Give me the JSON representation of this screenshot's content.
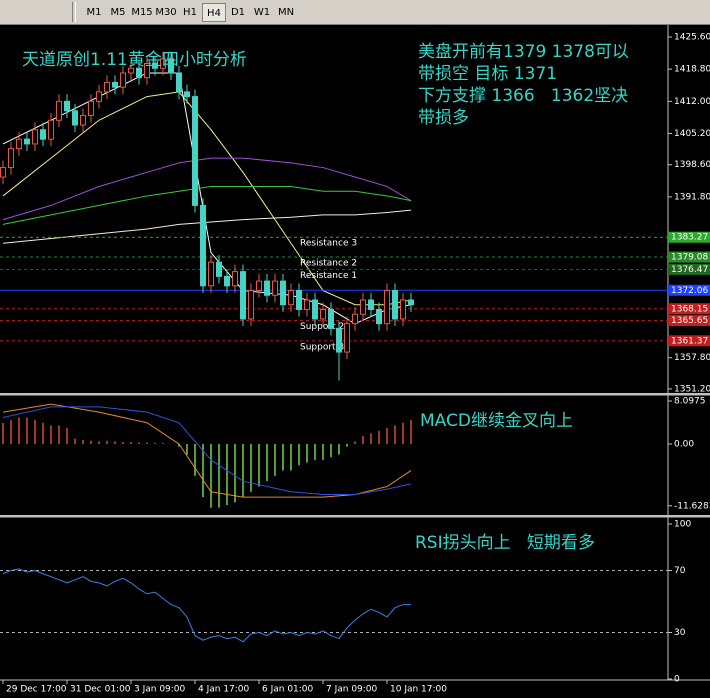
{
  "toolbar": {
    "timeframes": [
      "M1",
      "M5",
      "M15",
      "M30",
      "H1",
      "H4",
      "D1",
      "W1",
      "MN"
    ],
    "active": "H4"
  },
  "chart_data": [
    {
      "type": "candlestick",
      "title": "天道原创1.11黄金四小时分析",
      "notes": [
        "美盘开前有1379 1378可以",
        "带损空 目标 1371",
        "下方支撑 1366   1362坚决",
        "带损多"
      ],
      "categories": [
        "29 Dec 17:00",
        null,
        null,
        null,
        null,
        null,
        null,
        null,
        "31 Dec 01:00",
        null,
        null,
        null,
        null,
        null,
        null,
        null,
        "3 Jan 09:00",
        null,
        null,
        null,
        null,
        null,
        null,
        null,
        "4 Jan 17:00",
        null,
        null,
        null,
        null,
        null,
        null,
        null,
        "6 Jan 01:00",
        null,
        null,
        null,
        null,
        null,
        null,
        null,
        "7 Jan 09:00",
        null,
        null,
        null,
        null,
        null,
        null,
        null,
        "10 Jan 17:00",
        null,
        null,
        null
      ],
      "open": [
        1396,
        1398,
        1402,
        1404,
        1403,
        1406,
        1404,
        1408,
        1412,
        1410,
        1407,
        1409,
        1412,
        1414,
        1416,
        1415,
        1418,
        1419,
        1417,
        1420,
        1419,
        1421,
        1418,
        1414,
        1413,
        1390,
        1373,
        1378,
        1375,
        1373,
        1376,
        1366,
        1372,
        1374,
        1371,
        1374,
        1369,
        1372,
        1368,
        1370,
        1366,
        1368,
        1364,
        1359,
        1365,
        1367,
        1370,
        1368,
        1365,
        1372,
        1366,
        1370
      ],
      "high": [
        1399.5,
        1403.5,
        1405.5,
        1405.5,
        1407.5,
        1407.5,
        1409.5,
        1413.5,
        1413.5,
        1411.5,
        1410.5,
        1413.5,
        1415.5,
        1417.5,
        1417.5,
        1419.5,
        1420.5,
        1420.5,
        1421.5,
        1421.5,
        1422.5,
        1422.5,
        1419.5,
        1415.5,
        1414.5,
        1391.5,
        1379.5,
        1379.5,
        1376.5,
        1377.5,
        1377.5,
        1373.5,
        1375.5,
        1375.5,
        1375.5,
        1375.5,
        1373.5,
        1373.5,
        1371.5,
        1371.5,
        1369.5,
        1369.5,
        1365.5,
        1366.5,
        1368.5,
        1371.5,
        1371.5,
        1369.5,
        1373.5,
        1373.5,
        1371.5,
        1371.5
      ],
      "low": [
        1394.5,
        1396.5,
        1400.5,
        1401.5,
        1401.5,
        1402.5,
        1402.5,
        1406.5,
        1408.5,
        1405.5,
        1405.5,
        1407.5,
        1410.5,
        1412.5,
        1413.5,
        1413.5,
        1416.5,
        1415.5,
        1415.5,
        1417.5,
        1417.5,
        1416.5,
        1412.5,
        1411.5,
        1388.5,
        1371.5,
        1371.5,
        1373.5,
        1371.5,
        1371.5,
        1364.5,
        1364.5,
        1370.5,
        1369.5,
        1369.5,
        1367.5,
        1367.5,
        1366.5,
        1366.5,
        1364.5,
        1364.5,
        1362.5,
        1353,
        1357.5,
        1363.5,
        1365.5,
        1366.5,
        1363.5,
        1363.5,
        1364.5,
        1364.5,
        1367.5
      ],
      "close": [
        1398,
        1402,
        1404,
        1403,
        1406,
        1404,
        1408,
        1412,
        1410,
        1407,
        1409,
        1412,
        1414,
        1416,
        1415,
        1418,
        1419,
        1417,
        1420,
        1419,
        1421,
        1418,
        1414,
        1413,
        1390,
        1373,
        1378,
        1375,
        1373,
        1376,
        1366,
        1372,
        1374,
        1371,
        1374,
        1369,
        1372,
        1368,
        1370,
        1366,
        1368,
        1364,
        1359,
        1365,
        1367,
        1370,
        1368,
        1365,
        1372,
        1366,
        1370,
        1369
      ],
      "up_color": "#e05a4a",
      "down_color": "#45d4c4",
      "series": [
        {
          "color": "#f0f080",
          "x": [
            0,
            6,
            12,
            18,
            22,
            26,
            30,
            36,
            40,
            44,
            48,
            51
          ],
          "values": [
            1392,
            1400,
            1408,
            1413,
            1414,
            1406,
            1397,
            1382,
            1372,
            1369,
            1369,
            1370
          ]
        },
        {
          "color": "#ffffff",
          "x": [
            0,
            6,
            12,
            18,
            22,
            26,
            30,
            36,
            40,
            44,
            48,
            51
          ],
          "values": [
            1403,
            1408,
            1413,
            1418,
            1418,
            1380,
            1372,
            1371,
            1369,
            1365,
            1368,
            1369
          ]
        },
        {
          "color": "#9b4fd8",
          "x": [
            0,
            6,
            12,
            18,
            22,
            26,
            30,
            36,
            40,
            44,
            48,
            51
          ],
          "values": [
            1387,
            1390,
            1394,
            1397,
            1399,
            1400,
            1400,
            1399,
            1398,
            1396,
            1394,
            1391
          ]
        },
        {
          "color": "#3cc83c",
          "x": [
            0,
            6,
            12,
            18,
            22,
            26,
            30,
            36,
            40,
            44,
            48,
            51
          ],
          "values": [
            1386,
            1388,
            1390,
            1392,
            1393,
            1394,
            1394,
            1394,
            1393,
            1393,
            1392,
            1391
          ]
        },
        {
          "color": "#f2efd8",
          "x": [
            0,
            6,
            12,
            18,
            22,
            26,
            30,
            36,
            40,
            44,
            48,
            51
          ],
          "values": [
            1382,
            1383,
            1384,
            1385,
            1386,
            1386.5,
            1387,
            1387.5,
            1388,
            1388,
            1388.5,
            1389
          ]
        }
      ],
      "levels": [
        {
          "name": "Resistance 3",
          "value": 1383.27,
          "color": "#2fa82f"
        },
        {
          "name": "Resistance 2",
          "value": 1379.08,
          "color": "#2a8a2a"
        },
        {
          "name": "Resistance 1",
          "value": 1376.47,
          "color": "#1f6a1f"
        },
        {
          "value": 1372.06,
          "color": "#2040ff"
        },
        {
          "value": 1368.15,
          "color": "#c02020"
        },
        {
          "name": "Support 2",
          "value": 1365.65,
          "color": "#c02020"
        },
        {
          "name": "Support 3",
          "value": 1361.37,
          "color": "#c02020"
        }
      ],
      "ylim": [
        1350.34,
        1428.14
      ],
      "yticks": [
        {
          "value": 1425.6,
          "label": "1425.60"
        },
        {
          "value": 1418.8,
          "label": "1418.80"
        },
        {
          "value": 1412,
          "label": "1412.00"
        },
        {
          "value": 1405.2,
          "label": "1405.20"
        },
        {
          "value": 1398.6,
          "label": "1398.60"
        },
        {
          "value": 1391.8,
          "label": "1391.80"
        },
        {
          "value": 1357.8,
          "label": "1357.80"
        },
        {
          "value": 1351.2,
          "label": "1351.20"
        }
      ]
    },
    {
      "type": "macd",
      "title": "MACD继续金叉向上",
      "values": [
        4,
        4.5,
        5,
        5,
        4.5,
        4,
        3.5,
        3.5,
        3,
        1,
        0.8,
        0.6,
        0.5,
        0.6,
        0.5,
        0.4,
        0.4,
        0.3,
        0.3,
        0.2,
        0.2,
        0,
        -0.5,
        -2,
        -6,
        -10,
        -12,
        -12,
        -11.5,
        -11,
        -10,
        -9,
        -8,
        -7,
        -6,
        -5,
        -5,
        -4,
        -3.5,
        -3,
        -3,
        -2.5,
        -2,
        -0.5,
        0.5,
        1.5,
        2,
        2.5,
        3,
        3.5,
        4,
        4.5
      ],
      "up_color": "#d84a3a",
      "down_color": "#6fd44a",
      "series": [
        {
          "color": "#e08a30",
          "x": [
            0,
            6,
            12,
            18,
            22,
            26,
            30,
            36,
            40,
            44,
            48,
            51
          ],
          "values": [
            6,
            7.5,
            6,
            4,
            0,
            -9,
            -10,
            -10,
            -10,
            -9.5,
            -8,
            -5
          ]
        },
        {
          "color": "#3050e0",
          "x": [
            0,
            6,
            12,
            18,
            22,
            26,
            30,
            36,
            40,
            44,
            48,
            51
          ],
          "values": [
            5,
            7,
            7,
            6,
            4,
            -3,
            -7,
            -9,
            -9.5,
            -9.5,
            -8.5,
            -7.5
          ]
        }
      ],
      "ylim": [
        -13.37,
        9.23
      ],
      "yticks": [
        8.0975,
        {
          "value": 0,
          "label": "0.00"
        },
        -11.6283
      ]
    },
    {
      "type": "line",
      "title": "RSI拐头向上   短期看多",
      "color": "#3f7fe8",
      "values": [
        68,
        70,
        71,
        69,
        70,
        68,
        66,
        64,
        62,
        64,
        66,
        63,
        62,
        60,
        63,
        65,
        62,
        58,
        55,
        56,
        52,
        48,
        46,
        40,
        28,
        25,
        27,
        28,
        26,
        27,
        24,
        29,
        30,
        28,
        31,
        29,
        30,
        28,
        30,
        29,
        31,
        28,
        26,
        33,
        38,
        42,
        45,
        43,
        40,
        46,
        48,
        48
      ],
      "levels": [
        70,
        30
      ],
      "ylim": [
        -0.65,
        103.87
      ],
      "yticks": [
        100,
        70,
        30,
        0
      ]
    }
  ]
}
